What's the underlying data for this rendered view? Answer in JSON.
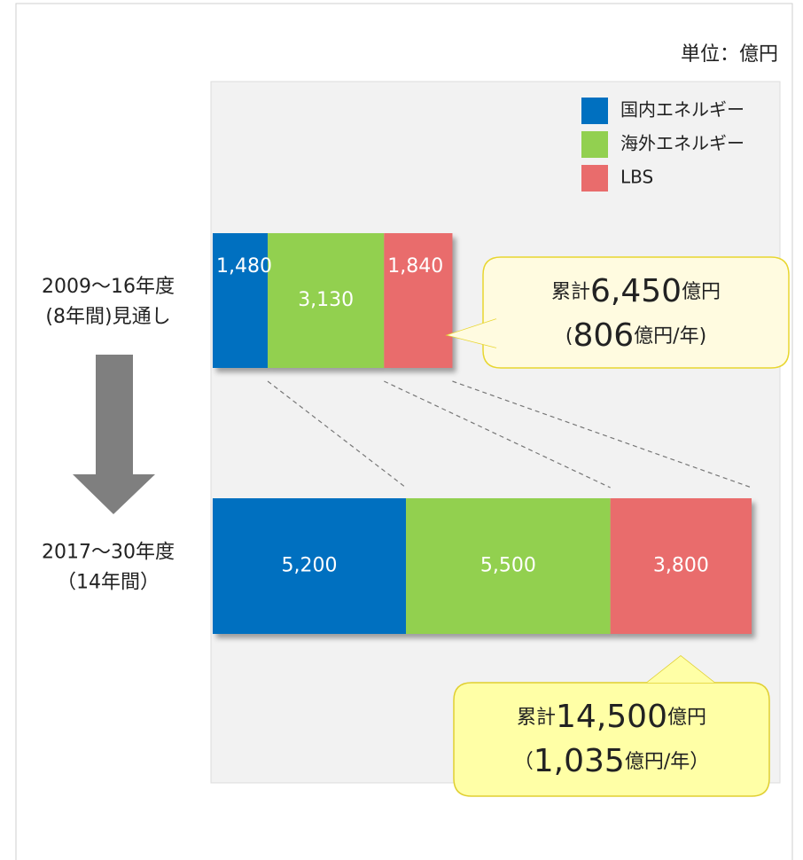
{
  "chart_data": {
    "type": "stacked-bar-horizontal",
    "unit_label": "単位：億円",
    "categories": [
      [
        "2009～16年度",
        "(8年間)見通し"
      ],
      [
        "2017～30年度",
        "（14年間）"
      ]
    ],
    "series": [
      {
        "name": "国内エネルギー",
        "color": "#0070c0",
        "values": [
          1480,
          5200
        ],
        "value_labels": [
          "1,480",
          "5,200"
        ]
      },
      {
        "name": "海外エネルギー",
        "color": "#92d050",
        "values": [
          3130,
          5500
        ],
        "value_labels": [
          "3,130",
          "5,500"
        ]
      },
      {
        "name": "LBS",
        "color": "#e96c6c",
        "values": [
          1840,
          3800
        ],
        "value_labels": [
          "1,840",
          "3,800"
        ]
      }
    ],
    "annotations": [
      {
        "lines": [
          [
            "累計",
            "6,450",
            "億円"
          ],
          [
            "(",
            "806",
            "億円/年)"
          ]
        ],
        "color": "#fffbe0",
        "border": "#e8d630"
      },
      {
        "lines": [
          [
            "累計",
            "14,500",
            "億円"
          ],
          [
            "（",
            "1,035",
            "億円/年）"
          ]
        ],
        "color": "#ffffa6",
        "border": "#e0cf30"
      }
    ]
  }
}
